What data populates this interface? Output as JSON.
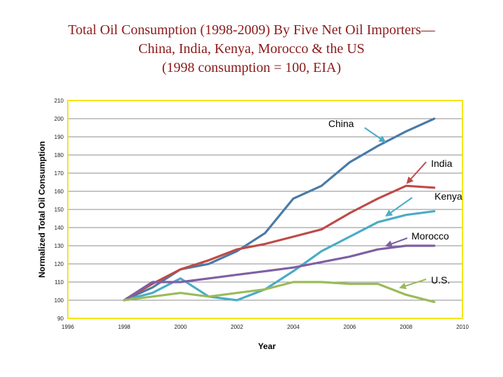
{
  "slide": {
    "title_lines": [
      "Total Oil Consumption (1998-2009) By Five Net Oil Importers—",
      "China, India, Kenya, Morocco & the US",
      "(1998 consumption = 100, EIA)"
    ]
  },
  "chart_data": {
    "type": "line",
    "title": "Total Oil Consumption (1998-2009) By Five Net Oil Importers—China, India, Kenya, Morocco & the US (1998 consumption = 100, EIA)",
    "xlabel": "Year",
    "ylabel": "Normalized Total Oil Consumption",
    "xlim": [
      1996,
      2010
    ],
    "ylim": [
      90,
      210
    ],
    "x_ticks": [
      1996,
      1998,
      2000,
      2002,
      2004,
      2006,
      2008,
      2010
    ],
    "y_ticks": [
      90,
      100,
      110,
      120,
      130,
      140,
      150,
      160,
      170,
      180,
      190,
      200,
      210
    ],
    "grid": "horizontal",
    "plot_border_color": "#f5e614",
    "x": [
      1998,
      1999,
      2000,
      2001,
      2002,
      2003,
      2004,
      2005,
      2006,
      2007,
      2008,
      2009
    ],
    "series": [
      {
        "name": "China",
        "color": "#4a7aa8",
        "values": [
          100,
          107,
          117,
          120,
          127,
          137,
          156,
          163,
          176,
          185,
          193,
          200
        ]
      },
      {
        "name": "India",
        "color": "#be4b48",
        "values": [
          100,
          109,
          117,
          122,
          128,
          131,
          135,
          139,
          148,
          156,
          163,
          162
        ]
      },
      {
        "name": "Kenya",
        "color": "#4bacc6",
        "values": [
          100,
          104,
          112,
          102,
          100,
          106,
          116,
          127,
          135,
          143,
          147,
          149
        ]
      },
      {
        "name": "Morocco",
        "color": "#7f5fa3",
        "values": [
          100,
          110,
          110,
          112,
          114,
          116,
          118,
          121,
          124,
          128,
          130,
          130
        ]
      },
      {
        "name": "U.S.",
        "color": "#9bbb59",
        "values": [
          100,
          102,
          104,
          102,
          104,
          106,
          110,
          110,
          109,
          109,
          103,
          99
        ]
      }
    ],
    "annotations": [
      {
        "label": "China",
        "color": "#4bacc6"
      },
      {
        "label": "India",
        "color": "#be4b48"
      },
      {
        "label": "Kenya",
        "color": "#4bacc6"
      },
      {
        "label": "Morocco",
        "color": "#7f5fa3"
      },
      {
        "label": "U.S.",
        "color": "#9bbb59"
      }
    ]
  }
}
